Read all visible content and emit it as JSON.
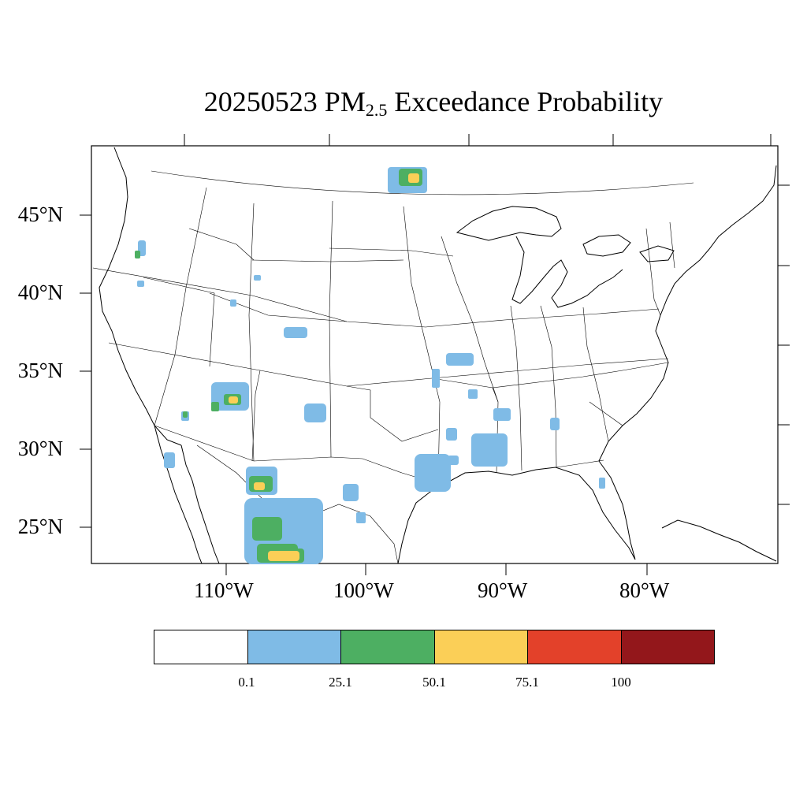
{
  "title": {
    "date": "20250523",
    "pm": "PM",
    "sub": "2.5",
    "rest": "Exceedance Probability"
  },
  "axes": {
    "lat_labels": [
      "45°N",
      "40°N",
      "35°N",
      "30°N",
      "25°N"
    ],
    "lon_labels": [
      "110°W",
      "100°W",
      "90°W",
      "80°W"
    ]
  },
  "legend": {
    "colors": [
      "#ffffff",
      "#7fbbe6",
      "#4daf62",
      "#fbcf57",
      "#e3412a",
      "#93171b"
    ],
    "labels": [
      "0.1",
      "25.1",
      "50.1",
      "75.1",
      "100"
    ]
  },
  "map_layers": {
    "land_outline": "coastline-and-state-boundaries",
    "probability_categories": [
      "0.1",
      "25.1",
      "50.1",
      "75.1"
    ]
  }
}
